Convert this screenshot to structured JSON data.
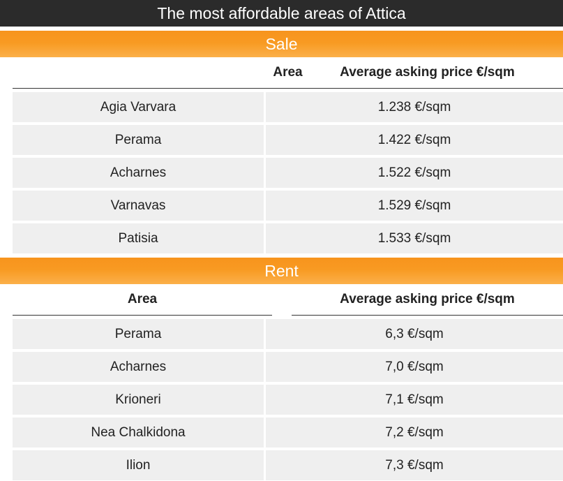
{
  "chart_data": {
    "type": "table",
    "title": "The most affordable areas of Attica",
    "sections": [
      {
        "name": "Sale",
        "columns": [
          "Area",
          "Average asking price €/sqm"
        ],
        "rows": [
          {
            "area": "Agia Varvara",
            "price": "1.238 €/sqm"
          },
          {
            "area": "Perama",
            "price": "1.422 €/sqm"
          },
          {
            "area": "Acharnes",
            "price": "1.522 €/sqm"
          },
          {
            "area": "Varnavas",
            "price": "1.529 €/sqm"
          },
          {
            "area": "Patisia",
            "price": "1.533 €/sqm"
          }
        ]
      },
      {
        "name": "Rent",
        "columns": [
          "Area",
          "Average asking price €/sqm"
        ],
        "rows": [
          {
            "area": "Perama",
            "price": "6,3 €/sqm"
          },
          {
            "area": "Acharnes",
            "price": "7,0 €/sqm"
          },
          {
            "area": "Krioneri",
            "price": "7,1 €/sqm"
          },
          {
            "area": "Nea Chalkidona",
            "price": "7,2 €/sqm"
          },
          {
            "area": "Ilion",
            "price": "7,3 €/sqm"
          }
        ]
      }
    ]
  },
  "colors": {
    "title_background": "#2b2b2b",
    "section_header": "#f7941d",
    "row_background": "#efefef"
  }
}
